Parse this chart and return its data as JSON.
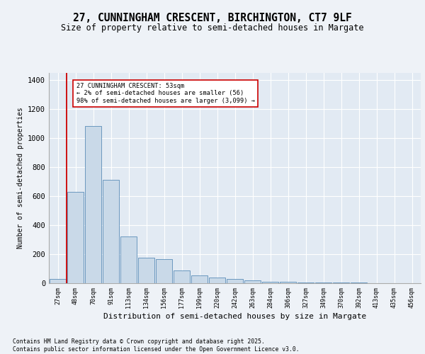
{
  "title1": "27, CUNNINGHAM CRESCENT, BIRCHINGTON, CT7 9LF",
  "title2": "Size of property relative to semi-detached houses in Margate",
  "xlabel": "Distribution of semi-detached houses by size in Margate",
  "ylabel": "Number of semi-detached properties",
  "bins": [
    "27sqm",
    "48sqm",
    "70sqm",
    "91sqm",
    "113sqm",
    "134sqm",
    "156sqm",
    "177sqm",
    "199sqm",
    "220sqm",
    "242sqm",
    "263sqm",
    "284sqm",
    "306sqm",
    "327sqm",
    "349sqm",
    "370sqm",
    "392sqm",
    "413sqm",
    "435sqm",
    "456sqm"
  ],
  "bar_values": [
    30,
    630,
    1080,
    710,
    320,
    175,
    165,
    90,
    55,
    40,
    30,
    18,
    12,
    10,
    7,
    5,
    4,
    3,
    2,
    1,
    1
  ],
  "bar_color": "#c9d9e8",
  "bar_edge_color": "#5b8db8",
  "property_line_color": "#cc0000",
  "annotation_text": "27 CUNNINGHAM CRESCENT: 53sqm\n← 2% of semi-detached houses are smaller (56)\n98% of semi-detached houses are larger (3,099) →",
  "annotation_box_color": "#ffffff",
  "annotation_box_edge": "#cc0000",
  "ylim": [
    0,
    1450
  ],
  "yticks": [
    0,
    200,
    400,
    600,
    800,
    1000,
    1200,
    1400
  ],
  "footer": "Contains HM Land Registry data © Crown copyright and database right 2025.\nContains public sector information licensed under the Open Government Licence v3.0.",
  "bg_color": "#eef2f7",
  "plot_bg_color": "#e2eaf3"
}
